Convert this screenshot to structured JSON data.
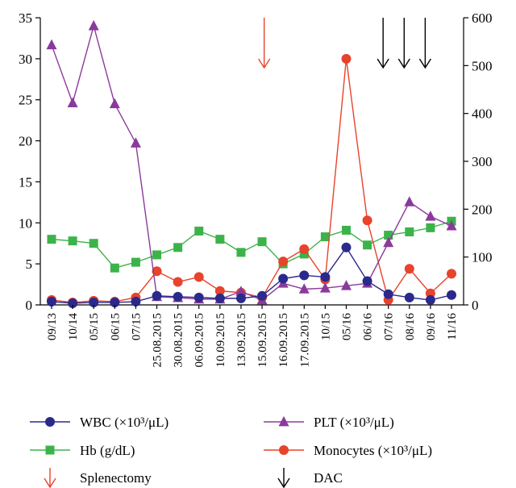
{
  "chart_data": {
    "type": "line",
    "categories": [
      "09/13",
      "10/14",
      "05/15",
      "06/15",
      "07/15",
      "25.08.2015",
      "30.08.2015",
      "06.09.2015",
      "10.09.2015",
      "13.09.2015",
      "15.09.2015",
      "16.09.2015",
      "17.09.2015",
      "10/15",
      "05/16",
      "06/16",
      "07/16",
      "08/16",
      "09/16",
      "11/16"
    ],
    "y_left": {
      "range": [
        0,
        35
      ],
      "ticks": [
        "0",
        "5",
        "10",
        "15",
        "20",
        "25",
        "30",
        "35"
      ]
    },
    "y_right": {
      "range": [
        0,
        600
      ],
      "ticks": [
        "0",
        "100",
        "200",
        "300",
        "400",
        "500",
        "600"
      ]
    },
    "grid": false,
    "series": [
      {
        "name": "WBC (×10³/μL)",
        "axis": "left",
        "color": "#2a2a8c",
        "marker": "circle",
        "values": [
          0.4,
          0.2,
          0.3,
          0.3,
          0.4,
          1.1,
          1.0,
          0.9,
          0.8,
          0.8,
          1.1,
          3.2,
          3.6,
          3.4,
          7.0,
          2.9,
          1.3,
          0.9,
          0.6,
          1.2
        ]
      },
      {
        "name": "PLT (×10³/μL)",
        "axis": "right",
        "color": "#8b3a9c",
        "marker": "triangle",
        "values": [
          543,
          422,
          583,
          420,
          338,
          17,
          15,
          12,
          12,
          28,
          10,
          45,
          33,
          35,
          40,
          45,
          130,
          215,
          185,
          165
        ]
      },
      {
        "name": "Hb (g/dL)",
        "axis": "left",
        "color": "#3cb34a",
        "marker": "square",
        "values": [
          8.0,
          7.8,
          7.5,
          4.5,
          5.2,
          6.1,
          7.0,
          9.0,
          8.0,
          6.4,
          7.7,
          5.0,
          6.2,
          8.3,
          9.1,
          7.3,
          8.5,
          8.9,
          9.4,
          10.2
        ]
      },
      {
        "name": "Monocytes (×10³/μL)",
        "axis": "left",
        "color": "#e8432c",
        "marker": "circle",
        "values": [
          0.6,
          0.3,
          0.5,
          0.4,
          0.9,
          4.1,
          2.8,
          3.4,
          1.7,
          1.5,
          0.9,
          5.3,
          6.8,
          3.1,
          30.0,
          10.3,
          0.6,
          4.4,
          1.4,
          3.8
        ]
      }
    ],
    "annotations": [
      {
        "name": "Splenectomy",
        "at_category": 10.1,
        "color": "#e8432c"
      },
      {
        "name": "DAC",
        "at_category": 15.75,
        "color": "#000000"
      },
      {
        "name": "DAC",
        "at_category": 16.75,
        "color": "#000000"
      },
      {
        "name": "DAC",
        "at_category": 17.75,
        "color": "#000000"
      }
    ],
    "legend": {
      "placement": "bottom",
      "items": [
        {
          "label": "WBC (×10³/μL)",
          "kind": "line-circle",
          "color": "#2a2a8c"
        },
        {
          "label": "PLT (×10³/μL)",
          "kind": "line-triangle",
          "color": "#8b3a9c"
        },
        {
          "label": "Hb (g/dL)",
          "kind": "line-square",
          "color": "#3cb34a"
        },
        {
          "label": "Monocytes (×10³/μL)",
          "kind": "line-circle",
          "color": "#e8432c"
        },
        {
          "label": "Splenectomy",
          "kind": "arrow",
          "color": "#e8432c"
        },
        {
          "label": "DAC",
          "kind": "arrow",
          "color": "#000000"
        }
      ]
    }
  }
}
